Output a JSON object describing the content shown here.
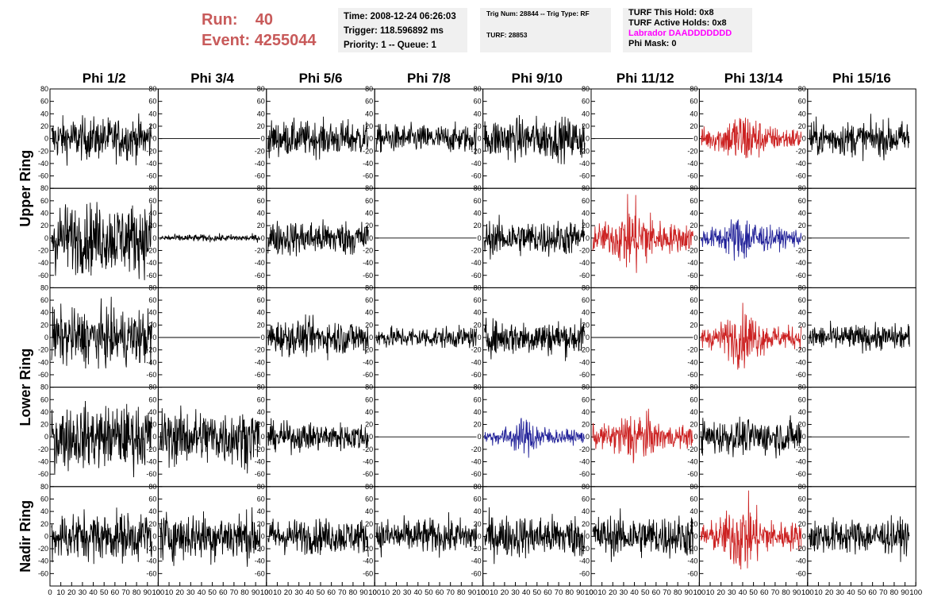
{
  "header": {
    "run_label": "Run:",
    "run_value": "40",
    "event_label": "Event:",
    "event_value": "4255044"
  },
  "info_box_1": {
    "time": "Time: 2008-12-24 06:26:03",
    "trigger": "Trigger: 118.596892 ms",
    "priority": "Priority: 1 -- Queue: 1"
  },
  "info_box_2": {
    "trig": "Trig Num: 28844 -- Trig Type: RF",
    "turf": "TURF: 28853"
  },
  "info_box_3": {
    "this_hold": "TURF This Hold: 0x8",
    "active_holds": "TURF Active Holds: 0x8",
    "labrador": "Labrador DAADDDDDDD",
    "phi_mask": "Phi Mask: 0"
  },
  "colors": {
    "black": "#000000",
    "red": "#cc2222",
    "blue": "#222299",
    "title_red": "#c85a5a",
    "magenta": "#ff00ff",
    "info_bg": "#f0f0f0"
  },
  "chart_data": {
    "type": "line",
    "column_titles": [
      "Phi 1/2",
      "Phi 3/4",
      "Phi 5/6",
      "Phi 7/8",
      "Phi 9/10",
      "Phi 11/12",
      "Phi 13/14",
      "Phi 15/16"
    ],
    "ring_labels": [
      "Upper Ring",
      "Lower Ring",
      "Nadir Ring"
    ],
    "ring_rows": [
      [
        0,
        1
      ],
      [
        2,
        3
      ],
      [
        4,
        4
      ]
    ],
    "ylim": [
      -80,
      80
    ],
    "yticks": [
      -60,
      -40,
      -20,
      0,
      20,
      40,
      60,
      80
    ],
    "xlim": [
      0,
      100
    ],
    "xticks": [
      0,
      10,
      20,
      30,
      40,
      50,
      60,
      70,
      80,
      90,
      100
    ],
    "rows": [
      [
        "black:30",
        "black:0",
        "black:25",
        "black:20",
        "black:30",
        "black:0",
        "red:35",
        "black:25"
      ],
      [
        "black:50",
        "black:5",
        "black:25",
        "black:0",
        "black:25",
        "red:45",
        "blue:30",
        "black:0"
      ],
      [
        "black:40",
        "black:0",
        "black:25",
        "black:15",
        "black:25",
        "black:0",
        "red:35",
        "black:18"
      ],
      [
        "black:45",
        "black:40",
        "black:20",
        "black:0",
        "blue:22",
        "red:35",
        "black:25",
        "black:0"
      ],
      [
        "black:35",
        "black:35",
        "black:25",
        "black:25",
        "black:30",
        "black:30",
        "red:45",
        "black:25"
      ]
    ]
  }
}
